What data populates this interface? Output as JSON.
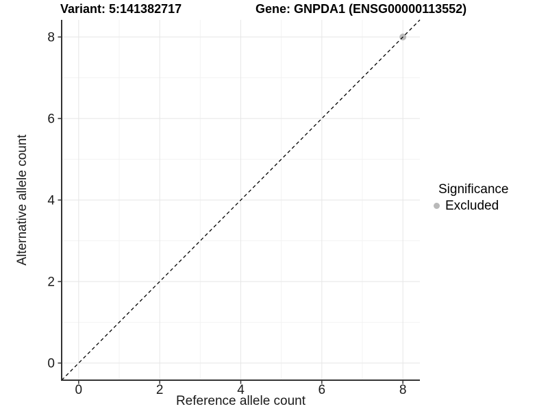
{
  "chart_data": {
    "type": "scatter",
    "title_left": "Variant: 5:141382717",
    "title_right": "Gene: GNPDA1 (ENSG00000113552)",
    "xlabel": "Reference allele count",
    "ylabel": "Alternative allele count",
    "xlim": [
      -0.42,
      8.42
    ],
    "ylim": [
      -0.42,
      8.42
    ],
    "x_ticks": [
      0,
      2,
      4,
      6,
      8
    ],
    "y_ticks": [
      0,
      2,
      4,
      6,
      8
    ],
    "x_minor_ticks": [
      1,
      3,
      5,
      7
    ],
    "y_minor_ticks": [
      1,
      3,
      5,
      7
    ],
    "grid": true,
    "series": [
      {
        "name": "Excluded",
        "color": "#b9b9b9",
        "points": [
          {
            "x": 8,
            "y": 8
          }
        ]
      }
    ],
    "reference_line": {
      "type": "identity",
      "equation": "y = x",
      "style": "dashed",
      "color": "#000000"
    },
    "legend": {
      "title": "Significance",
      "position": "right",
      "entries": [
        {
          "label": "Excluded",
          "color": "#b9b9b9"
        }
      ]
    },
    "colors": {
      "grid_major": "#e6e6e6",
      "grid_minor": "#f3f3f3",
      "axis_line": "#333333",
      "tick_label": "#1a1a1a",
      "background": "#ffffff"
    }
  }
}
